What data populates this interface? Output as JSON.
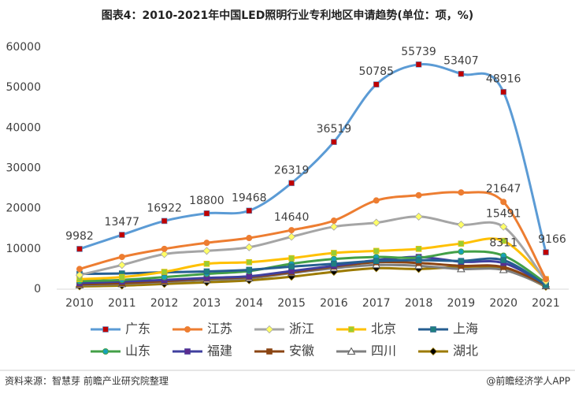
{
  "chart_data": {
    "type": "line",
    "title": "图表4：2010-2021年中国LED照明行业专利地区申请趋势(单位：项，%)",
    "categories": [
      "2010",
      "2011",
      "2012",
      "2013",
      "2014",
      "2015",
      "2016",
      "2017",
      "2018",
      "2019",
      "2020",
      "2021"
    ],
    "ylim": [
      0,
      60000
    ],
    "yticks": [
      0,
      10000,
      20000,
      30000,
      40000,
      50000,
      60000
    ],
    "source": "资料来源：智慧芽 前瞻产业研究院整理",
    "brand": "@前瞻经济学人APP",
    "series": [
      {
        "name": "广东",
        "color": "#5b9bd5",
        "marker": "square",
        "marker_color": "#c00000",
        "values": [
          9982,
          13477,
          16922,
          18800,
          19468,
          26319,
          36519,
          50785,
          55739,
          53407,
          48916,
          9166
        ],
        "value_labels": [
          "9982",
          "13477",
          "16922",
          "18800",
          "19468",
          "26319",
          "36519",
          "50785",
          "55739",
          "53407",
          "48916",
          "9166"
        ]
      },
      {
        "name": "江苏",
        "color": "#ed7d31",
        "marker": "circle",
        "marker_color": "#ed7d31",
        "values": [
          5000,
          8000,
          10000,
          11500,
          12700,
          14640,
          17000,
          22000,
          23300,
          24000,
          21647,
          2500
        ],
        "value_labels": [
          null,
          null,
          null,
          null,
          null,
          "14640",
          null,
          null,
          null,
          null,
          "21647",
          null
        ]
      },
      {
        "name": "浙江",
        "color": "#a5a5a5",
        "marker": "diamond",
        "marker_color": "#ffff66",
        "values": [
          3500,
          6000,
          8700,
          9500,
          10400,
          13000,
          15500,
          16500,
          18000,
          16000,
          15491,
          2000
        ],
        "value_labels": [
          null,
          null,
          null,
          null,
          null,
          null,
          null,
          null,
          null,
          null,
          "15491",
          null
        ]
      },
      {
        "name": "北京",
        "color": "#ffc000",
        "marker": "square",
        "marker_color": "#9acd32",
        "values": [
          2500,
          3000,
          4300,
          6300,
          6700,
          7700,
          9000,
          9500,
          10000,
          11300,
          12000,
          2500
        ]
      },
      {
        "name": "上海",
        "color": "#255e91",
        "marker": "square",
        "marker_color": "#1f7f7f",
        "values": [
          3800,
          3900,
          4200,
          4400,
          4800,
          5600,
          6300,
          7000,
          7200,
          7000,
          7200,
          1000
        ]
      },
      {
        "name": "山东",
        "color": "#43a047",
        "marker": "circle",
        "marker_color": "#17a2b8",
        "values": [
          2000,
          2300,
          3000,
          3800,
          4500,
          6300,
          7500,
          8000,
          7800,
          9300,
          8311,
          1500
        ],
        "value_labels": [
          null,
          null,
          null,
          null,
          null,
          null,
          null,
          null,
          null,
          null,
          "8311",
          null
        ]
      },
      {
        "name": "福建",
        "color": "#3f3f9f",
        "marker": "square",
        "marker_color": "#5b2c8f",
        "values": [
          1500,
          1900,
          2300,
          2800,
          3200,
          4500,
          5800,
          7200,
          8000,
          6800,
          6500,
          1200
        ]
      },
      {
        "name": "安徽",
        "color": "#8b4513",
        "marker": "square",
        "marker_color": "#8b4513",
        "values": [
          1200,
          1500,
          2000,
          2600,
          3000,
          4200,
          5600,
          6700,
          6500,
          5800,
          5500,
          1000
        ]
      },
      {
        "name": "四川",
        "color": "#7f7f7f",
        "marker": "triangle",
        "marker_color": "#ffffff",
        "values": [
          1000,
          1300,
          1800,
          2300,
          2700,
          4000,
          5200,
          6000,
          5800,
          5000,
          4800,
          800
        ]
      },
      {
        "name": "湖北",
        "color": "#9c7a00",
        "marker": "diamond",
        "marker_color": "#000000",
        "values": [
          700,
          900,
          1300,
          1700,
          2200,
          3100,
          4300,
          5200,
          5000,
          5500,
          5200,
          600
        ]
      }
    ]
  }
}
